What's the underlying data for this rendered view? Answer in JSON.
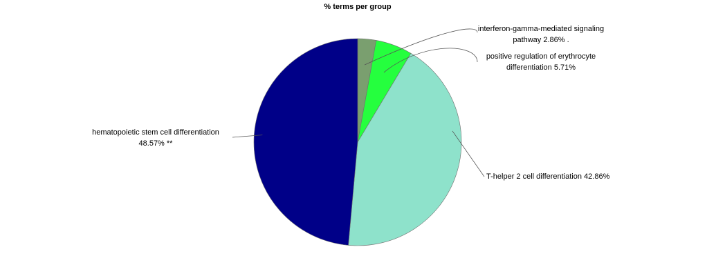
{
  "chart_data": {
    "type": "pie",
    "title": "% terms per group",
    "start_angle_degrees": -90,
    "direction": "clockwise",
    "slices": [
      {
        "label_lines": [
          "interferon-gamma-mediated signaling",
          "pathway 2.86% ."
        ],
        "value": 2.86,
        "color": "#7a9f6f"
      },
      {
        "label_lines": [
          "positive regulation of erythrocyte",
          "differentiation 5.71%"
        ],
        "value": 5.71,
        "color": "#25ff3e"
      },
      {
        "label_lines": [
          "T-helper 2 cell differentiation 42.86%"
        ],
        "value": 42.86,
        "color": "#8ee2cb"
      },
      {
        "label_lines": [
          "hematopoietic stem cell differentiation",
          "48.57% **"
        ],
        "value": 48.57,
        "color": "#000088"
      }
    ]
  }
}
